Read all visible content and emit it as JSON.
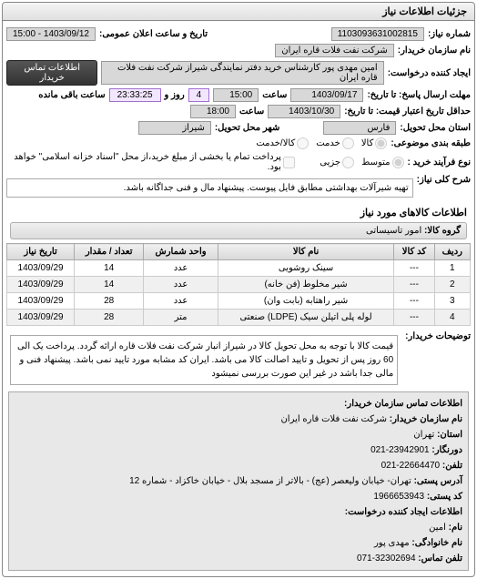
{
  "panel_title": "جزئیات اطلاعات نیاز",
  "req_number_label": "شماره نیاز:",
  "req_number": "1103093631002815",
  "announce_label": "تاریخ و ساعت اعلان عمومی:",
  "announce_value": "1403/09/12 - 15:00",
  "buyer_label": "نام سازمان خریدار:",
  "buyer_value": "شرکت نفت فلات قاره ایران",
  "creator_label": "ایجاد کننده درخواست:",
  "creator_value": "امین مهدی پور کارشناس خرید دفتر نمایندگی شیراز شرکت نفت فلات قاره ایران",
  "buyer_contact_btn": "اطلاعات تماس خریدار",
  "deadline_resp_label": "مهلت ارسال پاسخ: تا تاریخ:",
  "deadline_resp_date": "1403/09/17",
  "time_label": "ساعت",
  "deadline_resp_time": "15:00",
  "days_remain": "4",
  "days_remain_suffix": "روز و",
  "time_remain": "23:33:25",
  "time_remain_suffix": "ساعت باقی مانده",
  "validity_label": "حداقل تاریخ اعتبار قیمت: تا تاریخ:",
  "validity_date": "1403/10/30",
  "validity_time": "18:00",
  "delivery_state_label": "استان محل تحویل:",
  "delivery_state": "فارس",
  "delivery_city_label": "شهر محل تحویل:",
  "delivery_city": "شیراز",
  "budget_label": "طبقه بندی موضوعی:",
  "budget_opts": {
    "a": "کالا",
    "b": "خدمت",
    "c": "کالا/خدمت"
  },
  "price_label": "نوع فرآیند خرید :",
  "price_opts": {
    "a": "متوسط",
    "b": "جزیی"
  },
  "checkbox_note": "پرداخت تمام یا بخشی از مبلغ خرید،از محل \"اسناد خزانه اسلامی\" خواهد بود.",
  "need_title_label": "شرح کلی نیاز:",
  "need_title": "تهیه شیرآلات بهداشتی مطابق فایل پیوست. پیشنهاد مال و فنی جداگانه باشد.",
  "items_section": "اطلاعات کالاهای مورد نیاز",
  "group_label": "گروه کالا:",
  "group_value": "امور تاسیساتی",
  "table": {
    "headers": [
      "ردیف",
      "کد کالا",
      "نام کالا",
      "واحد شمارش",
      "تعداد / مقدار",
      "تاریخ نیاز"
    ],
    "rows": [
      [
        "1",
        "---",
        "سینک روشویی",
        "عدد",
        "14",
        "1403/09/29"
      ],
      [
        "2",
        "---",
        "شیر مخلوط (فن خانه)",
        "عدد",
        "14",
        "1403/09/29"
      ],
      [
        "3",
        "---",
        "شیر راهتابه (بابت وان)",
        "عدد",
        "28",
        "1403/09/29"
      ],
      [
        "4",
        "---",
        "لوله پلی اتیلن سیک (LDPE) صنعتی",
        "متر",
        "28",
        "1403/09/29"
      ]
    ]
  },
  "buyer_notes_label": "توضیحات خریدار:",
  "buyer_notes": "قیمت کالا با توجه به محل تحویل کالا در شیراز انبار شرکت نفت فلات قاره ارائه گردد. پرداخت یک الی 60  روز پس از تحویل و تایید اصالت کالا می باشد. ایران کد مشابه مورد تایید نمی باشد. پیشنهاد فنی و مالی جدا باشد در غیر این صورت بررسی نمیشود",
  "contact_section_title": "اطلاعات تماس سازمان خریدار:",
  "contact": {
    "org_label": "نام سازمان خریدار:",
    "org": "شرکت نفت فلات قاره ایران",
    "province_label": "استان:",
    "province": "تهران",
    "mobile_label": "دورنگار:",
    "mobile": "23942901-021",
    "phone_label": "تلفن:",
    "phone": "22664470-021",
    "postal_label": "آدرس پستی:",
    "postal": "تهران- خیابان ولیعصر (عج) - بالاتر از مسجد بلال - خیابان خاکزاد - شماره 12",
    "postcode_label": "کد پستی:",
    "postcode": "1966653943",
    "creator_section": "اطلاعات ایجاد کننده درخواست:",
    "name_label": "نام:",
    "name": "امین",
    "lname_label": "نام خانوادگی:",
    "lname": "مهدی پور",
    "tel_label": "تلفن تماس:",
    "tel": "32302694-071"
  }
}
